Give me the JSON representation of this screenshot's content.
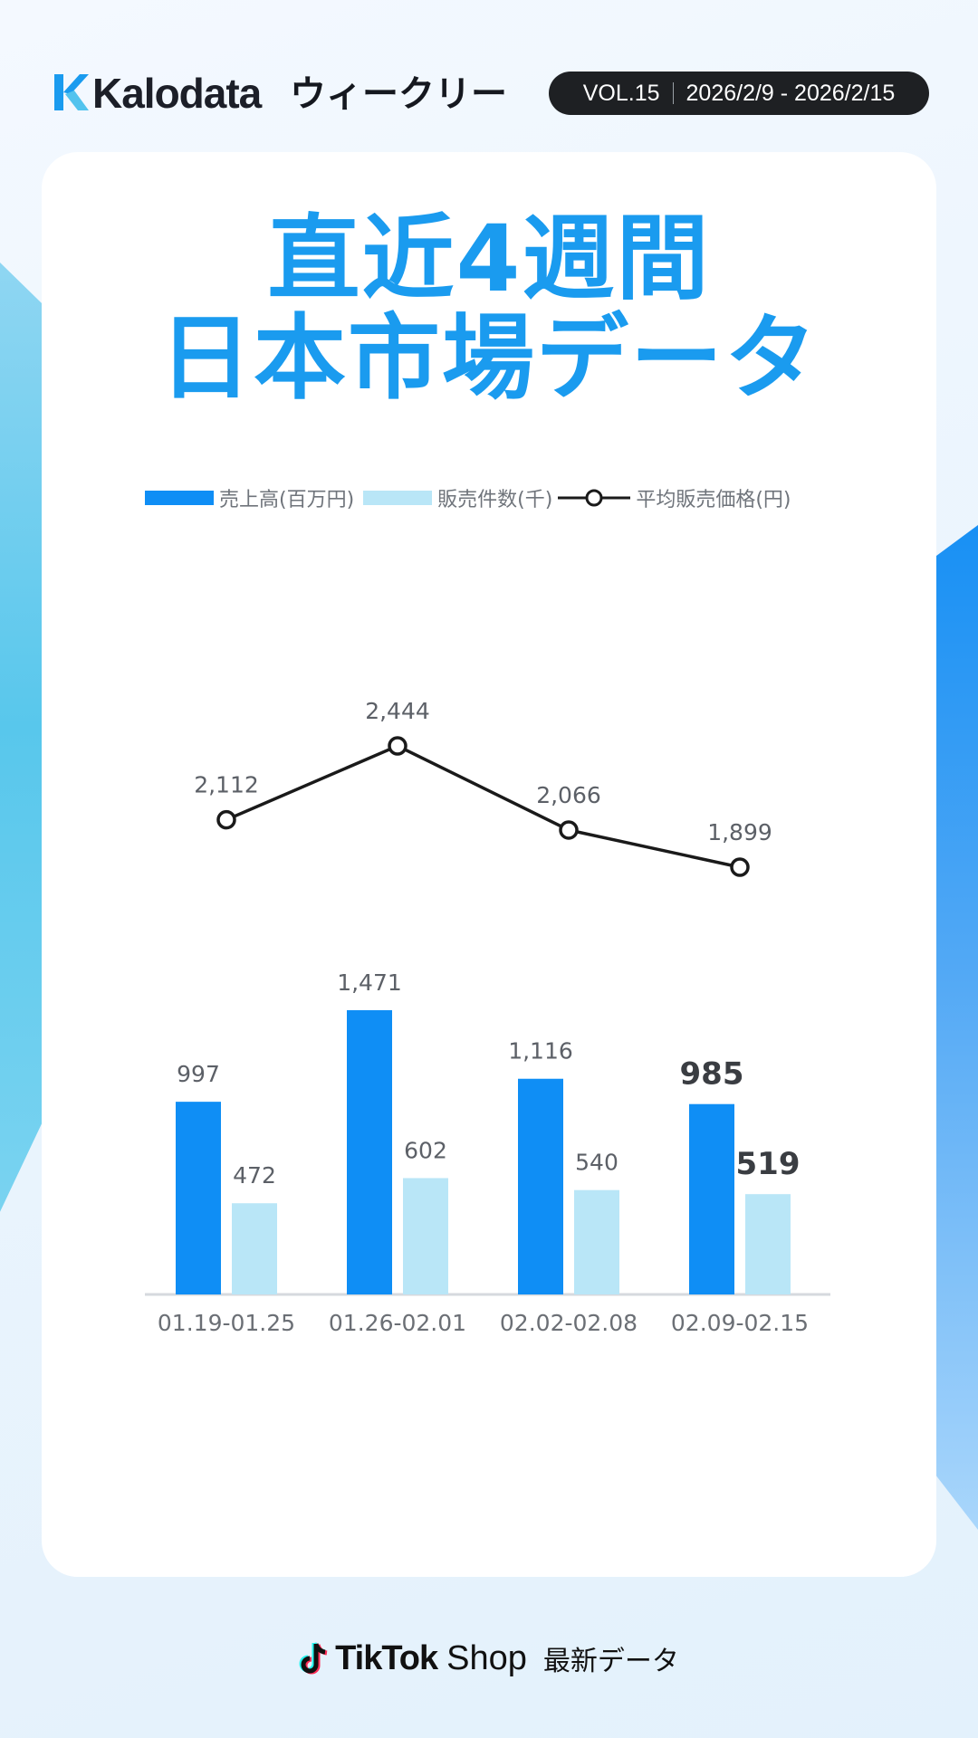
{
  "header": {
    "brand": "Kalodata",
    "weekly_label": "ウィークリー",
    "volume": "VOL.15",
    "date_range": "2026/2/9 - 2026/2/15"
  },
  "title": {
    "line1": "直近4週間",
    "line2": "日本市場データ"
  },
  "colors": {
    "accent": "#1a9bef",
    "sales_bar": "#0f8ef5",
    "units_bar": "#b9e6f7",
    "line": "#1a1a1a"
  },
  "chart_data": {
    "type": "bar",
    "categories": [
      "01.19-01.25",
      "01.26-02.01",
      "02.02-02.08",
      "02.09-02.15"
    ],
    "series": [
      {
        "name": "売上高(百万円)",
        "type": "bar",
        "values": [
          997,
          1471,
          1116,
          985
        ],
        "labels": [
          "997",
          "1,471",
          "1,116",
          "985"
        ]
      },
      {
        "name": "販売件数(千)",
        "type": "bar",
        "values": [
          472,
          602,
          540,
          519
        ],
        "labels": [
          "472",
          "602",
          "540",
          "519"
        ]
      },
      {
        "name": "平均販売価格(円)",
        "type": "line",
        "values": [
          2112,
          2444,
          2066,
          1899
        ],
        "labels": [
          "2,112",
          "2,444",
          "2,066",
          "1,899"
        ]
      }
    ],
    "highlight_index": 3,
    "legend_position": "top"
  },
  "footer": {
    "brand": "TikTok",
    "shop": "Shop",
    "latest": "最新データ"
  }
}
